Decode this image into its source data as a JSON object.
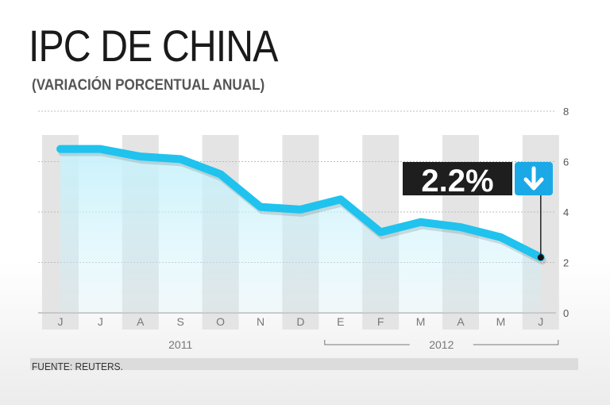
{
  "chart_data": {
    "type": "area",
    "title": "IPC DE CHINA",
    "subtitle": "(VARIACIÓN PORCENTUAL ANUAL)",
    "categories": [
      "J",
      "J",
      "A",
      "S",
      "O",
      "N",
      "D",
      "E",
      "F",
      "M",
      "A",
      "M",
      "J"
    ],
    "years": [
      {
        "label": "2011",
        "from_index": 0,
        "to_index": 6
      },
      {
        "label": "2012",
        "from_index": 7,
        "to_index": 12
      }
    ],
    "series": [
      {
        "values": [
          6.5,
          6.5,
          6.2,
          6.1,
          5.5,
          4.2,
          4.1,
          4.5,
          3.2,
          3.6,
          3.4,
          3.0,
          2.2
        ]
      }
    ],
    "yticks": [
      0,
      2,
      4,
      6,
      8
    ],
    "ylim": [
      0,
      8
    ],
    "callout": {
      "text": "2.2%",
      "index": 12,
      "arrow": "down"
    },
    "grid": true,
    "colors": {
      "line": "#1fc3ee",
      "fill": "#c8f1fb",
      "band": "#e4e4e4",
      "callout_bg": "#1e1e1e",
      "arrow_bg": "#1aa9e6"
    }
  },
  "source": "FUENTE: REUTERS."
}
